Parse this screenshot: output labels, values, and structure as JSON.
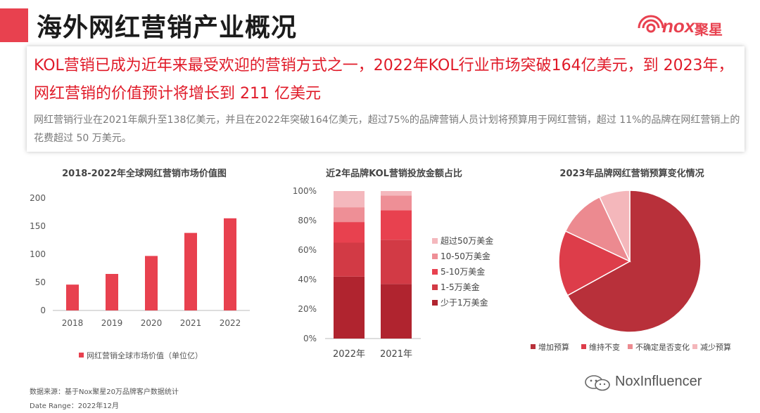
{
  "header": {
    "title": "海外网红营销产业概况",
    "logo_text": "nox",
    "logo_cn": "聚星"
  },
  "summary": {
    "headline": "KOL营销已成为近年来最受欢迎的营销方式之一，2022年KOL行业市场突破164亿美元，到 2023年，网红营销的价值预计将增长到 211 亿美元",
    "description": "网红营销行业在2021年飙升至138亿美元，并且在2022年突破164亿美元，超过75%的品牌营销人员计划将预算用于网红营销，超过 11%的品牌在网红营销上的花费超过 50 万美元。"
  },
  "colors": {
    "accent": "#e8414f",
    "headline": "#e01a28"
  },
  "chart_data": [
    {
      "type": "bar",
      "title": "2018-2022年全球网红营销市场价值图",
      "categories": [
        "2018",
        "2019",
        "2020",
        "2021",
        "2022"
      ],
      "series": [
        {
          "name": "网红营销全球市场价值（单位亿）",
          "values": [
            46,
            65,
            97,
            138,
            164
          ],
          "color": "#e8414f"
        }
      ],
      "ylim": [
        0,
        200
      ],
      "yticks": [
        "0",
        "50",
        "100",
        "150",
        "200"
      ],
      "xlabel": "",
      "ylabel": "",
      "grid": false,
      "legend": "bottom"
    },
    {
      "type": "bar",
      "stacked": true,
      "title": "近2年品牌KOL营销投放金额占比",
      "categories": [
        "2022年",
        "2021年"
      ],
      "series": [
        {
          "name": "少于1万美金",
          "values": [
            42,
            37
          ],
          "color": "#b0242f"
        },
        {
          "name": "1-5万美金",
          "values": [
            23,
            30
          ],
          "color": "#d23a45"
        },
        {
          "name": "5-10万美金",
          "values": [
            14,
            20
          ],
          "color": "#e8414f"
        },
        {
          "name": "10-50万美金",
          "values": [
            10,
            10
          ],
          "color": "#ee8f96"
        },
        {
          "name": "超过50万美金",
          "values": [
            11,
            3
          ],
          "color": "#f4b8bd"
        }
      ],
      "ylim": [
        0,
        100
      ],
      "yticks": [
        "0%",
        "20%",
        "40%",
        "60%",
        "80%",
        "100%"
      ],
      "grid": false,
      "legend": "right"
    },
    {
      "type": "pie",
      "title": "2023年品牌网红营销预算变化情况",
      "series": [
        {
          "name": "增加预算",
          "value": 67,
          "color": "#b8303a"
        },
        {
          "name": "维持不变",
          "value": 15,
          "color": "#dd3d4a"
        },
        {
          "name": "不确定是否变化",
          "value": 11,
          "color": "#ec8a90"
        },
        {
          "name": "减少预算",
          "value": 7,
          "color": "#f4b7bb"
        }
      ],
      "legend": "bottom"
    }
  ],
  "footer": {
    "source": "数据来源：基于Nox聚星20万品牌客户数据统计",
    "date_range": "Date Range：2022年12月",
    "watermark": "NoxInfluencer"
  }
}
